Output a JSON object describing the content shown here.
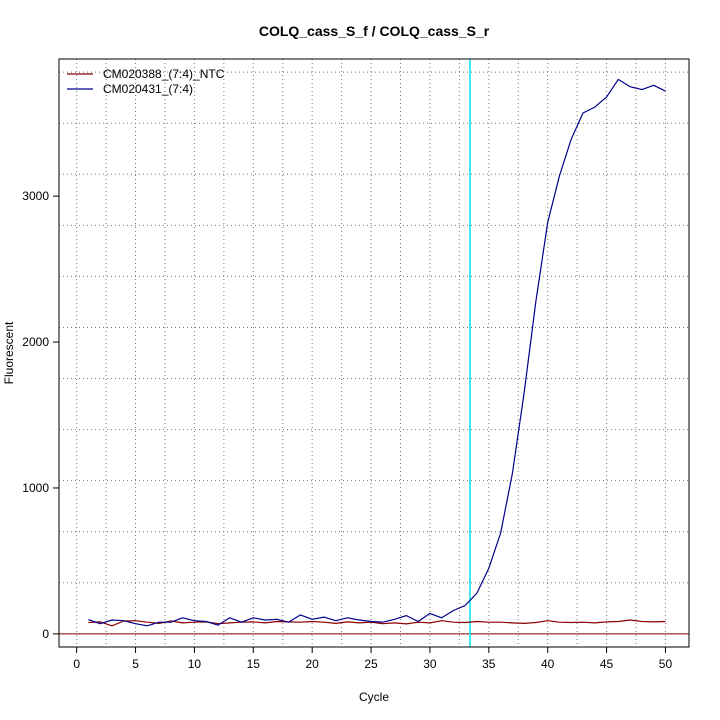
{
  "chart_data": {
    "type": "line",
    "title": "COLQ_cass_S_f / COLQ_cass_S_r",
    "xlabel": "Cycle",
    "ylabel": "Fluorescent",
    "xlim": [
      -1.5,
      52
    ],
    "ylim": [
      -90,
      3940
    ],
    "x_ticks": [
      0,
      5,
      10,
      15,
      20,
      25,
      30,
      35,
      40,
      45,
      50
    ],
    "y_ticks": [
      0,
      1000,
      2000,
      3000
    ],
    "x_grid": [
      0,
      2.5,
      5,
      7.5,
      10,
      12.5,
      15,
      17.5,
      20,
      22.5,
      25,
      27.5,
      30,
      32.5,
      35,
      37.5,
      40,
      42.5,
      45,
      47.5,
      50
    ],
    "y_grid": [
      0,
      350,
      700,
      1050,
      1400,
      1750,
      2100,
      2450,
      2800,
      3150,
      3500,
      3850
    ],
    "grid": true,
    "legend_position": "top-left",
    "baseline": {
      "y": 0,
      "color": "#8b0000"
    },
    "threshold": {
      "x": 33.4,
      "color": "#00e5ee"
    },
    "series": [
      {
        "name": "CM020388_(7:4)_NTC",
        "color": "#8b0000",
        "x": [
          1,
          2,
          3,
          4,
          5,
          6,
          7,
          8,
          9,
          10,
          11,
          12,
          13,
          14,
          15,
          16,
          17,
          18,
          19,
          20,
          21,
          22,
          23,
          24,
          25,
          26,
          27,
          28,
          29,
          30,
          31,
          32,
          33,
          34,
          35,
          36,
          37,
          38,
          39,
          40,
          41,
          42,
          43,
          44,
          45,
          46,
          47,
          48,
          49,
          50
        ],
        "values": [
          78,
          82,
          55,
          88,
          90,
          80,
          72,
          88,
          75,
          80,
          82,
          70,
          75,
          80,
          82,
          75,
          85,
          82,
          80,
          85,
          80,
          72,
          82,
          75,
          80,
          70,
          75,
          68,
          80,
          75,
          90,
          80,
          78,
          85,
          80,
          80,
          75,
          72,
          78,
          90,
          80,
          78,
          80,
          75,
          82,
          85,
          95,
          85,
          82,
          85
        ]
      },
      {
        "name": "CM020431_(7:4)",
        "color": "#00008b",
        "x": [
          1,
          2,
          3,
          4,
          5,
          6,
          7,
          8,
          9,
          10,
          11,
          12,
          13,
          14,
          15,
          16,
          17,
          18,
          19,
          20,
          21,
          22,
          23,
          24,
          25,
          26,
          27,
          28,
          29,
          30,
          31,
          32,
          33,
          34,
          35,
          36,
          37,
          38,
          39,
          40,
          41,
          42,
          43,
          44,
          45,
          46,
          47,
          48,
          49,
          50
        ],
        "values": [
          98,
          70,
          95,
          90,
          70,
          55,
          80,
          80,
          110,
          90,
          85,
          60,
          110,
          80,
          110,
          95,
          100,
          80,
          130,
          100,
          115,
          90,
          110,
          95,
          85,
          80,
          100,
          125,
          85,
          140,
          110,
          160,
          195,
          280,
          450,
          690,
          1100,
          1650,
          2280,
          2820,
          3140,
          3390,
          3570,
          3610,
          3680,
          3800,
          3750,
          3730,
          3760,
          3720
        ]
      }
    ]
  }
}
